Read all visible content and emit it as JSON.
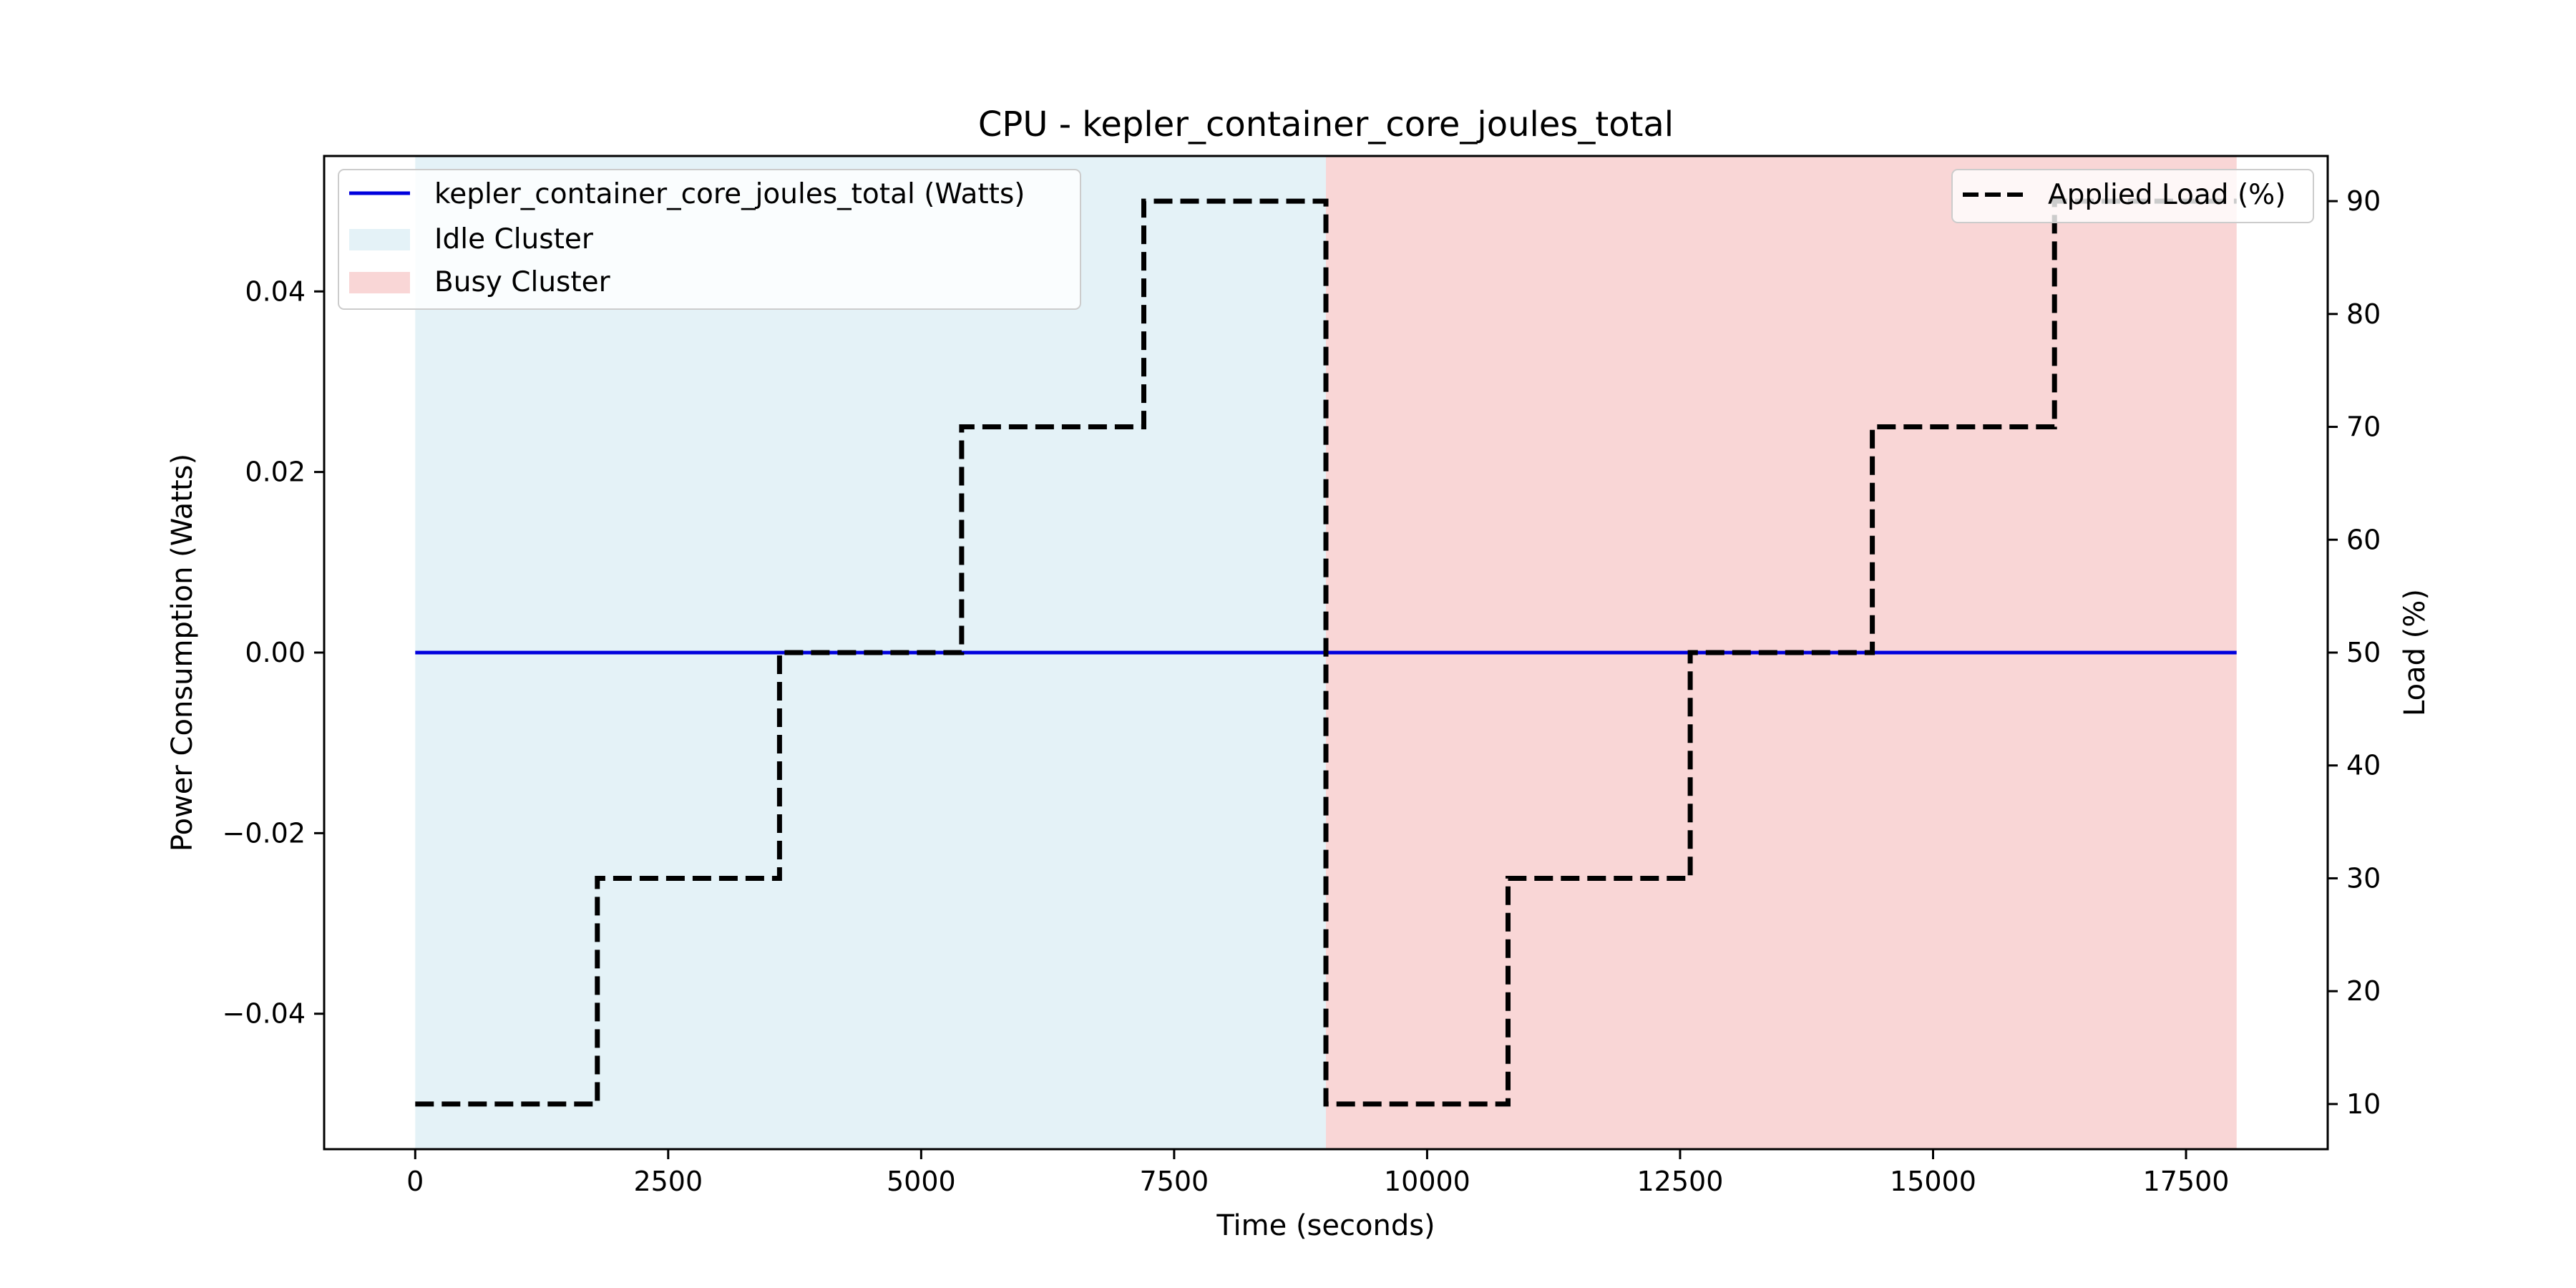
{
  "chart_data": {
    "type": "line",
    "title": "CPU - kepler_container_core_joules_total",
    "xlabel": "Time (seconds)",
    "ylabel_left": "Power Consumption (Watts)",
    "ylabel_right": "Load (%)",
    "xlim": [
      -900,
      18900
    ],
    "ylim_left": [
      -0.055,
      0.055
    ],
    "ylim_right": [
      6,
      94
    ],
    "x_ticks": [
      0,
      2500,
      5000,
      7500,
      10000,
      12500,
      15000,
      17500
    ],
    "x_tick_labels": [
      "0",
      "2500",
      "5000",
      "7500",
      "10000",
      "12500",
      "15000",
      "17500"
    ],
    "y_left_ticks": [
      -0.04,
      -0.02,
      0.0,
      0.02,
      0.04
    ],
    "y_left_tick_labels": [
      "−0.04",
      "−0.02",
      "0.00",
      "0.02",
      "0.04"
    ],
    "y_right_ticks": [
      10,
      20,
      30,
      40,
      50,
      60,
      70,
      80,
      90
    ],
    "y_right_tick_labels": [
      "10",
      "20",
      "30",
      "40",
      "50",
      "60",
      "70",
      "80",
      "90"
    ],
    "regions": [
      {
        "name": "Idle Cluster",
        "x_start": 0,
        "x_end": 9000,
        "color": "#e4f2f7"
      },
      {
        "name": "Busy Cluster",
        "x_start": 9000,
        "x_end": 18000,
        "color": "#f9d6d6"
      }
    ],
    "series": [
      {
        "name": "kepler_container_core_joules_total (Watts)",
        "axis": "left",
        "color": "#0000dd",
        "style": "solid",
        "x": [
          0,
          18000
        ],
        "y": [
          0.0,
          0.0
        ]
      },
      {
        "name": "Applied Load (%)",
        "axis": "right",
        "color": "#000000",
        "style": "dashed",
        "step": true,
        "x": [
          0,
          1800,
          3600,
          5400,
          7200,
          9000,
          10800,
          12600,
          14400,
          16200,
          18000
        ],
        "y": [
          10,
          30,
          50,
          70,
          90,
          10,
          30,
          50,
          70,
          90,
          90
        ]
      }
    ],
    "legend_left": {
      "placement": "top-left",
      "entries": [
        {
          "label": "kepler_container_core_joules_total (Watts)",
          "kind": "line",
          "color": "#0000dd"
        },
        {
          "label": "Idle Cluster",
          "kind": "patch",
          "color": "#e4f2f7"
        },
        {
          "label": "Busy Cluster",
          "kind": "patch",
          "color": "#f9d6d6"
        }
      ]
    },
    "legend_right": {
      "placement": "top-right",
      "entries": [
        {
          "label": "Applied Load (%)",
          "kind": "dashed-line",
          "color": "#000000"
        }
      ]
    },
    "colors": {
      "left_axis_label": "#0000dd"
    }
  }
}
